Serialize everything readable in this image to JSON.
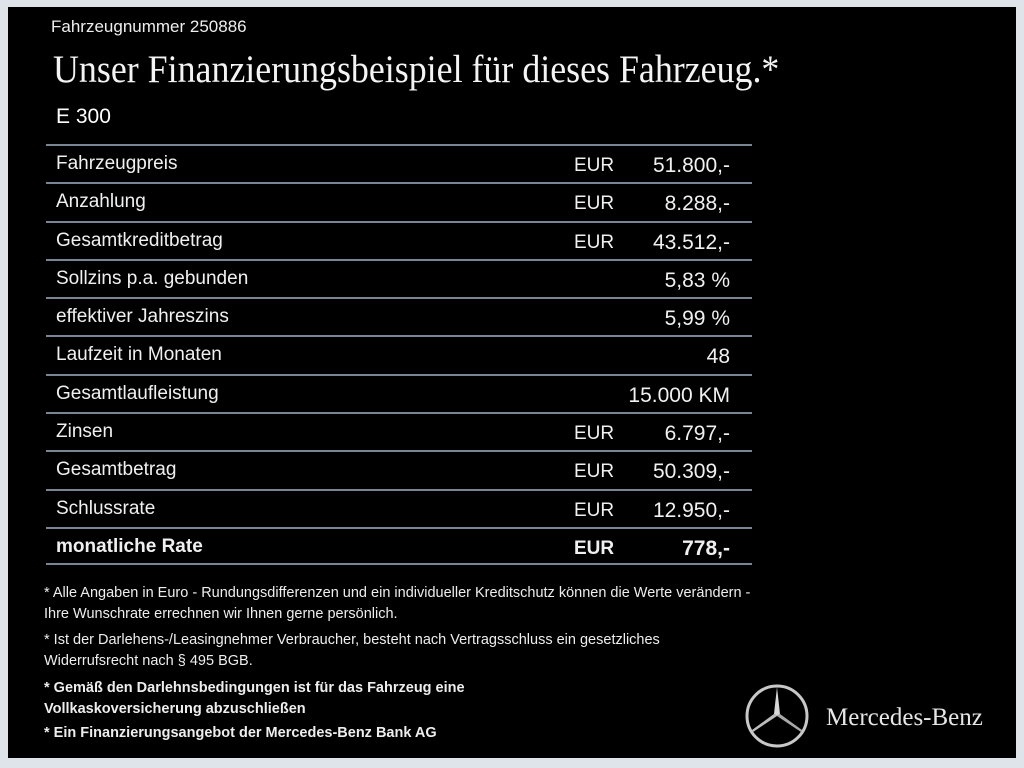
{
  "header": {
    "vehicle_number": "Fahrzeugnummer 250886",
    "title": "Unser Finanzierungsbeispiel für dieses Fahrzeug.*",
    "model": "E 300"
  },
  "rows": [
    {
      "label": "Fahrzeugpreis",
      "currency": "EUR",
      "value": "51.800,-"
    },
    {
      "label": "Anzahlung",
      "currency": "EUR",
      "value": "8.288,-"
    },
    {
      "label": "Gesamtkreditbetrag",
      "currency": "EUR",
      "value": "43.512,-"
    },
    {
      "label": "Sollzins p.a. gebunden",
      "currency": "",
      "value": "5,83 %"
    },
    {
      "label": "effektiver Jahreszins",
      "currency": "",
      "value": "5,99 %"
    },
    {
      "label": "Laufzeit in Monaten",
      "currency": "",
      "value": "48"
    },
    {
      "label": "Gesamtlaufleistung",
      "currency": "",
      "value": "15.000 KM"
    },
    {
      "label": "Zinsen",
      "currency": "EUR",
      "value": "6.797,-"
    },
    {
      "label": "Gesamtbetrag",
      "currency": "EUR",
      "value": "50.309,-"
    },
    {
      "label": "Schlussrate",
      "currency": "EUR",
      "value": "12.950,-"
    },
    {
      "label": "monatliche Rate",
      "currency": "EUR",
      "value": "778,-"
    }
  ],
  "notes": [
    "* Alle Angaben in Euro - Rundungsdifferenzen und ein individueller Kreditschutz können die Werte verändern - Ihre Wunschrate errechnen wir Ihnen gerne persönlich.",
    "* Ist der Darlehens-/Leasingnehmer Verbraucher, besteht nach Vertragsschluss ein gesetzliches Widerrufsrecht nach § 495 BGB.",
    "* Gemäß den Darlehnsbedingungen ist für das Fahrzeug eine Vollkaskoversicherung abzuschließen",
    "* Ein Finanzierungsangebot der Mercedes-Benz Bank AG"
  ],
  "brand": {
    "name": "Mercedes-Benz",
    "logo_icon": "mercedes-star-icon"
  },
  "colors": {
    "background": "#000000",
    "divider": "#7a8593",
    "text": "#f0f0f0"
  }
}
